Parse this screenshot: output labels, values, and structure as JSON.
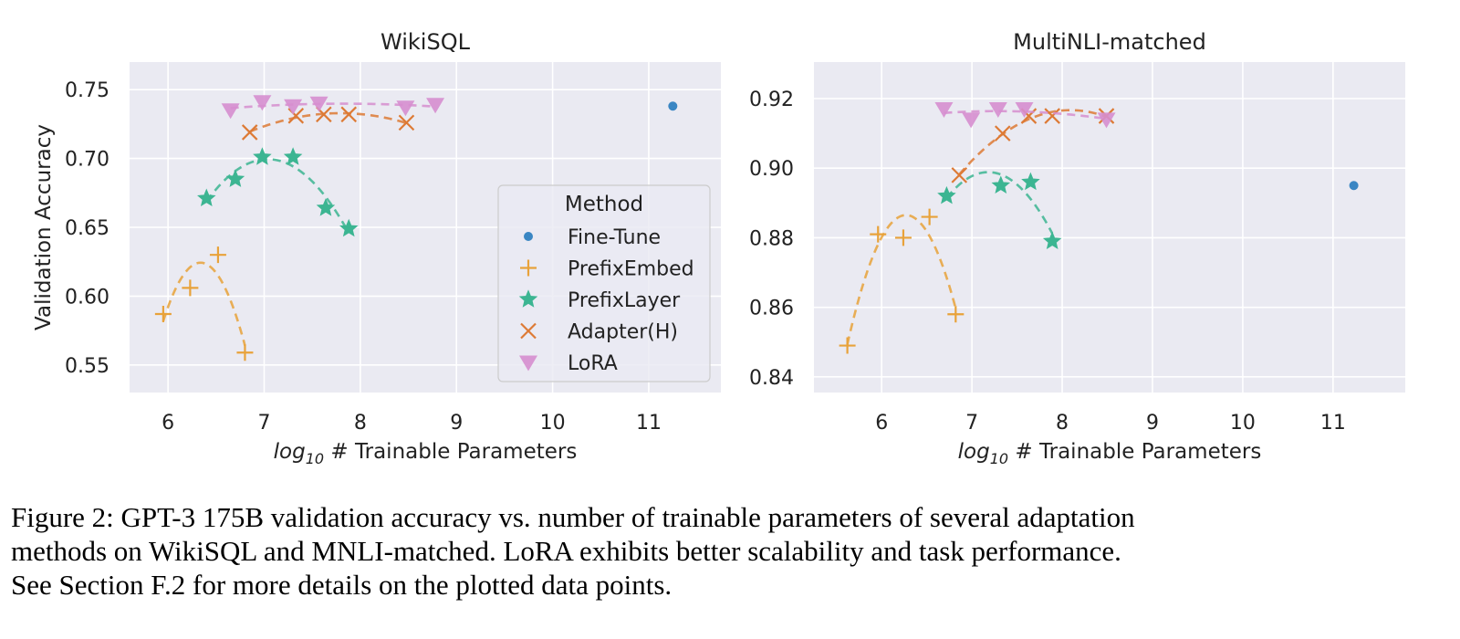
{
  "chart_data": [
    {
      "type": "scatter",
      "title": "WikiSQL",
      "xlabel_pre": "log",
      "xlabel_sub": "10",
      "xlabel_post": " # Trainable Parameters",
      "ylabel": "Validation Accuracy",
      "xlim": [
        5.6,
        11.75
      ],
      "ylim": [
        0.53,
        0.77
      ],
      "xticks": [
        "6",
        "7",
        "8",
        "9",
        "10",
        "11"
      ],
      "yticks": [
        "0.55",
        "0.60",
        "0.65",
        "0.70",
        "0.75"
      ],
      "grid": true,
      "legend": {
        "title": "Method",
        "placement": "right",
        "entries": [
          "Fine-Tune",
          "PrefixEmbed",
          "PrefixLayer",
          "Adapter(H)",
          "LoRA"
        ]
      },
      "series": [
        {
          "name": "Fine-Tune",
          "marker": "circle",
          "color": "#3a86c3",
          "x": [
            11.25
          ],
          "y": [
            0.738
          ]
        },
        {
          "name": "PrefixEmbed",
          "marker": "plus",
          "color": "#e8a23a",
          "x": [
            5.95,
            6.23,
            6.52,
            6.8
          ],
          "y": [
            0.587,
            0.606,
            0.63,
            0.559
          ]
        },
        {
          "name": "PrefixLayer",
          "marker": "star",
          "color": "#3cb592",
          "x": [
            6.4,
            6.7,
            6.98,
            7.3,
            7.64,
            7.88
          ],
          "y": [
            0.671,
            0.685,
            0.701,
            0.701,
            0.664,
            0.649
          ]
        },
        {
          "name": "Adapter(H)",
          "marker": "x",
          "color": "#dd7a35",
          "x": [
            6.85,
            7.33,
            7.62,
            7.88,
            8.48
          ],
          "y": [
            0.719,
            0.731,
            0.732,
            0.732,
            0.726
          ]
        },
        {
          "name": "LoRA",
          "marker": "triangle-down",
          "color": "#d68ecf",
          "x": [
            6.65,
            6.98,
            7.3,
            7.57,
            8.47,
            8.78
          ],
          "y": [
            0.735,
            0.741,
            0.738,
            0.74,
            0.737,
            0.739
          ]
        }
      ]
    },
    {
      "type": "scatter",
      "title": "MultiNLI-matched",
      "xlabel_pre": "log",
      "xlabel_sub": "10",
      "xlabel_post": " # Trainable Parameters",
      "ylabel": "",
      "xlim": [
        5.25,
        11.8
      ],
      "ylim": [
        0.8355,
        0.9305
      ],
      "xticks": [
        "6",
        "7",
        "8",
        "9",
        "10",
        "11"
      ],
      "yticks": [
        "0.84",
        "0.86",
        "0.88",
        "0.90",
        "0.92"
      ],
      "grid": true,
      "series": [
        {
          "name": "Fine-Tune",
          "marker": "circle",
          "color": "#3a86c3",
          "x": [
            11.23
          ],
          "y": [
            0.895
          ]
        },
        {
          "name": "PrefixEmbed",
          "marker": "plus",
          "color": "#e8a23a",
          "x": [
            5.62,
            5.96,
            6.24,
            6.53,
            6.82
          ],
          "y": [
            0.849,
            0.881,
            0.88,
            0.886,
            0.858
          ]
        },
        {
          "name": "PrefixLayer",
          "marker": "star",
          "color": "#3cb592",
          "x": [
            6.72,
            7.32,
            7.65,
            7.89
          ],
          "y": [
            0.892,
            0.895,
            0.896,
            0.879
          ]
        },
        {
          "name": "Adapter(H)",
          "marker": "x",
          "color": "#dd7a35",
          "x": [
            6.86,
            7.34,
            7.63,
            7.89,
            8.49
          ],
          "y": [
            0.898,
            0.91,
            0.915,
            0.915,
            0.915
          ]
        },
        {
          "name": "LoRA",
          "marker": "triangle-down",
          "color": "#d68ecf",
          "x": [
            6.69,
            6.99,
            7.29,
            7.58,
            8.49
          ],
          "y": [
            0.917,
            0.914,
            0.917,
            0.917,
            0.914
          ]
        }
      ]
    }
  ],
  "caption": {
    "line1": "Figure 2: GPT-3 175B validation accuracy vs. number of trainable parameters of several adaptation",
    "line2": "methods on WikiSQL and MNLI-matched. LoRA exhibits better scalability and task performance.",
    "line3": "See Section F.2 for more details on the plotted data points."
  }
}
